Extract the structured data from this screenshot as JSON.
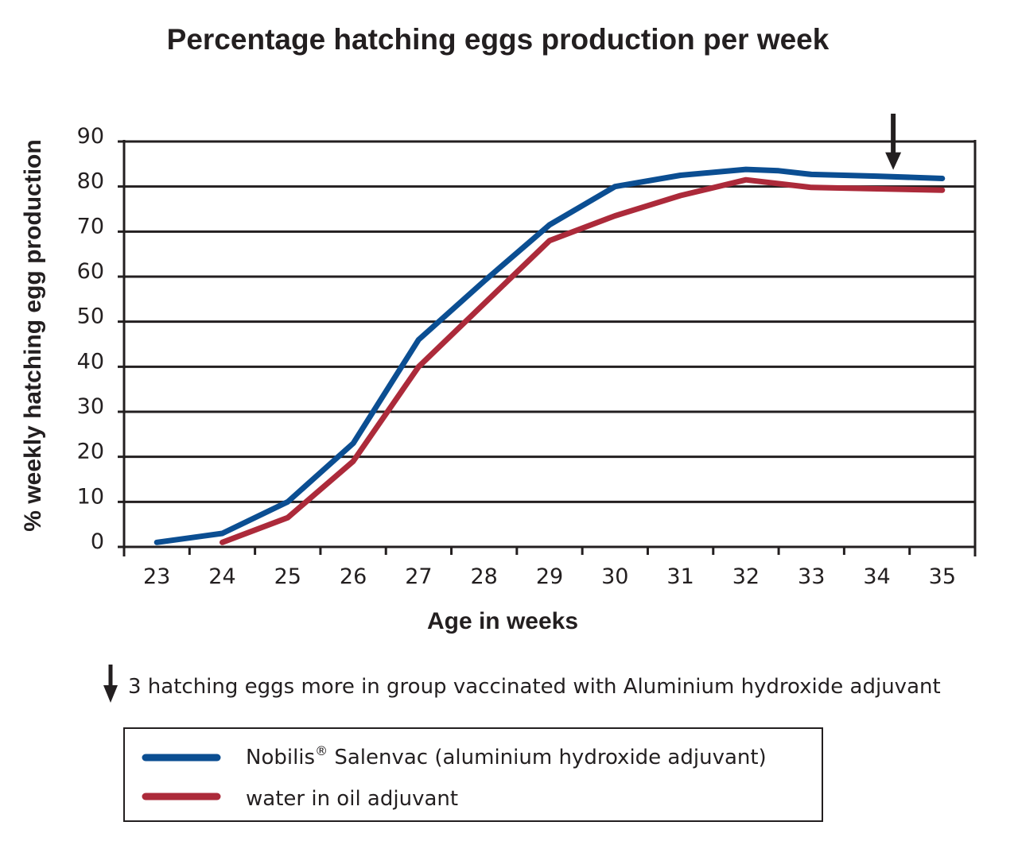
{
  "chart_data": {
    "type": "line",
    "title": "Percentage hatching eggs production per week",
    "xlabel": "Age in weeks",
    "ylabel": "% weekly hatching egg production",
    "x": [
      23,
      24,
      25,
      26,
      27,
      28,
      29,
      30,
      31,
      32,
      33,
      34,
      35
    ],
    "xlim": [
      22.5,
      35.5
    ],
    "yticks": [
      0,
      10,
      20,
      30,
      40,
      50,
      60,
      70,
      80,
      90
    ],
    "ylim": [
      0,
      90
    ],
    "grid": "horizontal",
    "series": [
      {
        "name": "Nobilis® Salenvac (aluminium hydroxide adjuvant)",
        "legend_main": "Nobilis",
        "legend_sup": "®",
        "legend_rest": " Salenvac (aluminium hydroxide adjuvant)",
        "color": "#0b4e92",
        "points": [
          [
            23.0,
            1
          ],
          [
            24.0,
            3
          ],
          [
            25.0,
            10
          ],
          [
            26.0,
            23
          ],
          [
            27.0,
            46
          ],
          [
            28.0,
            59
          ],
          [
            29.0,
            71.5
          ],
          [
            30.0,
            80
          ],
          [
            31.0,
            82.5
          ],
          [
            32.0,
            83.8
          ],
          [
            32.5,
            83.5
          ],
          [
            33.0,
            82.7
          ],
          [
            34.0,
            82.3
          ],
          [
            35.0,
            81.8
          ]
        ]
      },
      {
        "name": "water in oil adjuvant",
        "legend_main": "water in oil adjuvant",
        "legend_sup": "",
        "legend_rest": "",
        "color": "#ac2a3a",
        "points": [
          [
            24.0,
            1
          ],
          [
            25.0,
            6.5
          ],
          [
            26.0,
            19
          ],
          [
            27.0,
            40
          ],
          [
            28.0,
            54
          ],
          [
            29.0,
            68
          ],
          [
            30.0,
            73.5
          ],
          [
            31.0,
            78
          ],
          [
            32.0,
            81.5
          ],
          [
            33.0,
            79.8
          ],
          [
            34.0,
            79.5
          ],
          [
            35.0,
            79.2
          ]
        ]
      }
    ],
    "annotations": [
      {
        "type": "arrow-down",
        "x": 34.25,
        "y": 82.3
      }
    ],
    "note": "3 hatching eggs more in group vaccinated with Aluminium hydroxide adjuvant",
    "legend_position": "bottom"
  }
}
